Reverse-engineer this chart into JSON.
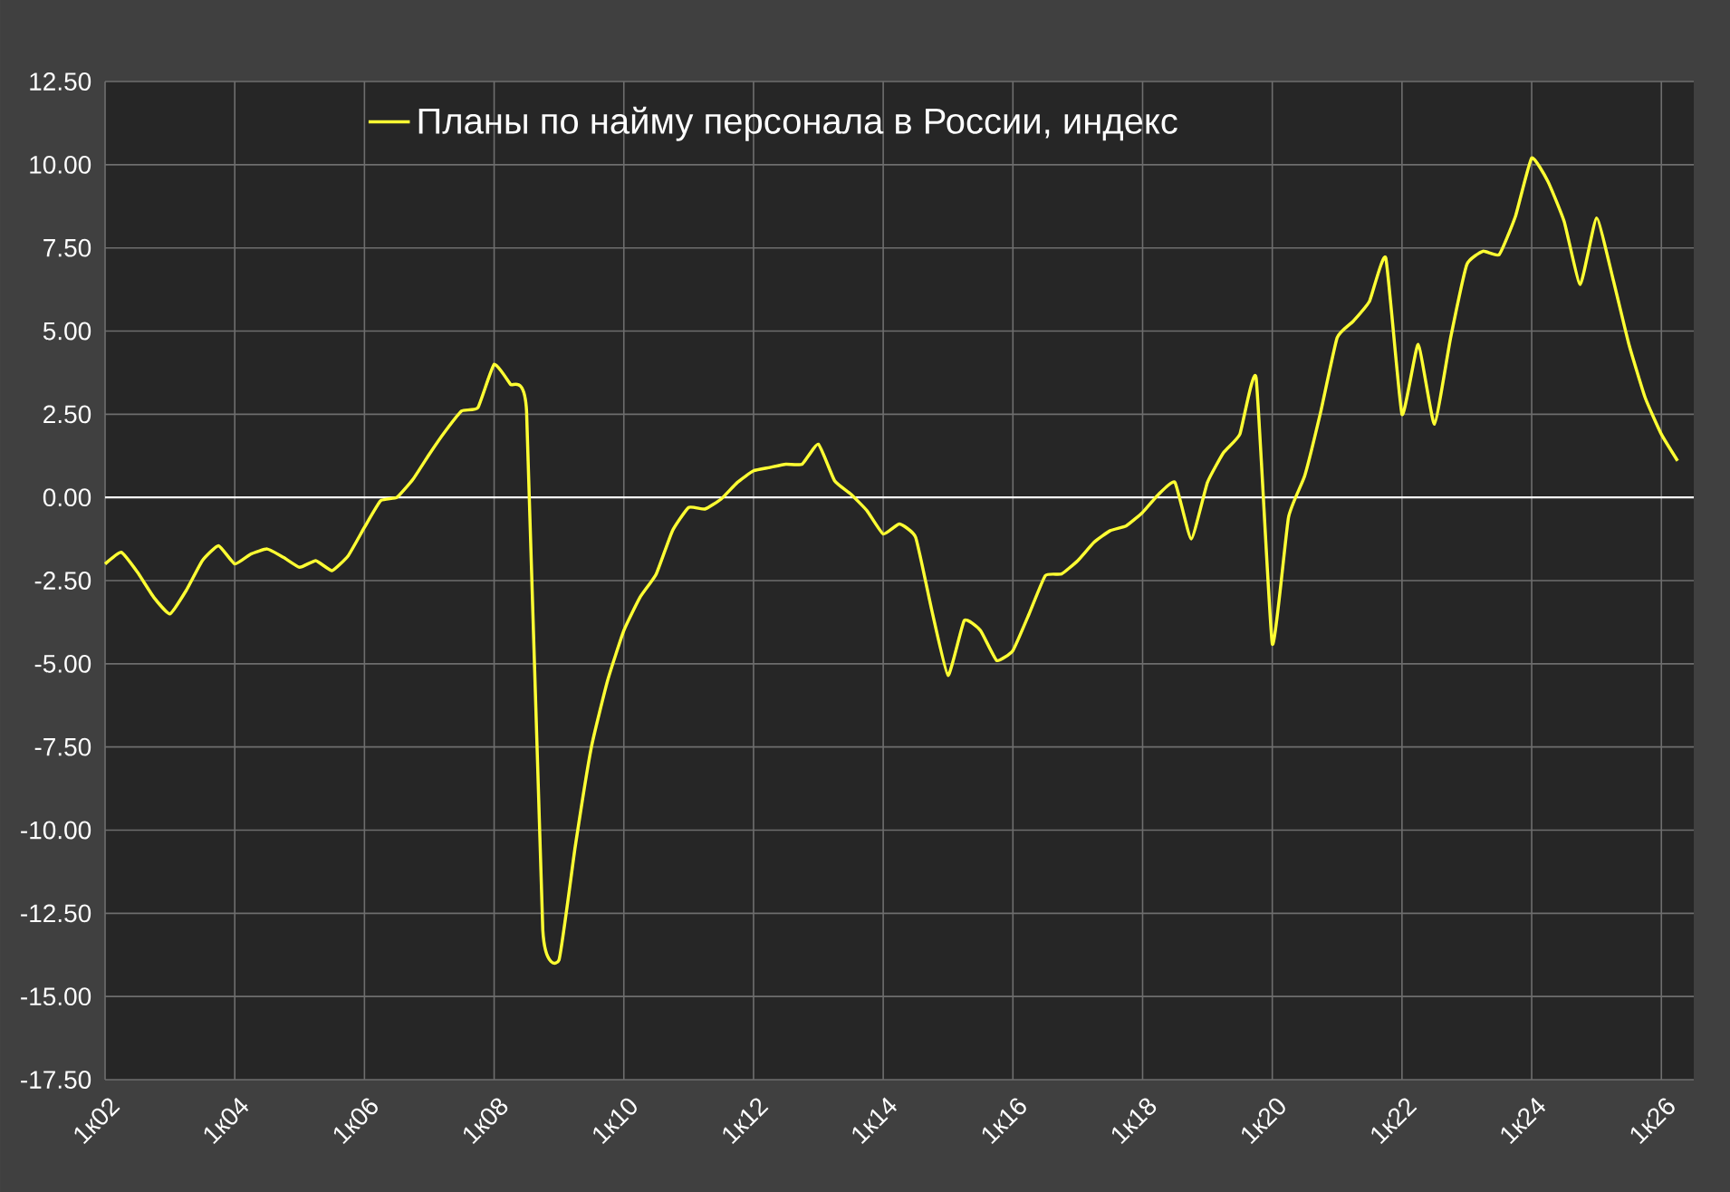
{
  "chart_data": {
    "type": "line",
    "categories": [
      "1к02",
      null,
      null,
      null,
      null,
      null,
      null,
      null,
      "1к04",
      null,
      null,
      null,
      null,
      null,
      null,
      null,
      "1к06",
      null,
      null,
      null,
      null,
      null,
      null,
      null,
      "1к08",
      null,
      null,
      null,
      null,
      null,
      null,
      null,
      "1к10",
      null,
      null,
      null,
      null,
      null,
      null,
      null,
      "1к12",
      null,
      null,
      null,
      null,
      null,
      null,
      null,
      "1к14",
      null,
      null,
      null,
      null,
      null,
      null,
      null,
      "1к16",
      null,
      null,
      null,
      null,
      null,
      null,
      null,
      "1к18",
      null,
      null,
      null,
      null,
      null,
      null,
      null,
      "1к20",
      null,
      null,
      null,
      null,
      null,
      null,
      null,
      "1к22",
      null,
      null,
      null,
      null,
      null,
      null,
      null,
      "1к24",
      null,
      null,
      null,
      null,
      null,
      null,
      null,
      "1к26",
      null
    ],
    "series": [
      {
        "name": "Планы по найму персонала в России, индекс",
        "color": "#ffff33",
        "values": [
          -2.0,
          -1.65,
          -2.25,
          -3.0,
          -3.5,
          -2.8,
          -1.9,
          -1.45,
          -2.0,
          -1.7,
          -1.55,
          -1.8,
          -2.1,
          -1.9,
          -2.2,
          -1.75,
          -0.9,
          -0.1,
          0.0,
          0.55,
          1.3,
          2.0,
          2.6,
          2.7,
          4.0,
          3.4,
          2.6,
          -13.0,
          -13.9,
          -10.5,
          -7.5,
          -5.5,
          -4.0,
          -3.0,
          -2.3,
          -1.0,
          -0.3,
          -0.35,
          -0.05,
          0.45,
          0.8,
          0.9,
          1.0,
          1.0,
          1.6,
          0.5,
          0.1,
          -0.4,
          -1.1,
          -0.8,
          -1.2,
          -3.4,
          -5.35,
          -3.7,
          -4.0,
          -4.9,
          -4.6,
          -3.5,
          -2.35,
          -2.3,
          -1.9,
          -1.35,
          -1.0,
          -0.85,
          -0.45,
          0.1,
          0.45,
          -1.25,
          0.45,
          1.35,
          1.9,
          3.6,
          -4.4,
          -0.6,
          0.65,
          2.6,
          4.8,
          5.3,
          5.9,
          7.2,
          2.5,
          4.6,
          2.2,
          4.8,
          7.0,
          7.4,
          7.3,
          8.45,
          10.2,
          9.5,
          8.3,
          6.4,
          8.4,
          6.6,
          4.6,
          3.0,
          1.9,
          1.1
        ]
      }
    ],
    "ylim": [
      -17.5,
      12.5
    ],
    "yticks": [
      {
        "value": -17.5,
        "label": "-17.50"
      },
      {
        "value": -15,
        "label": "-15.00"
      },
      {
        "value": -12.5,
        "label": "-12.50"
      },
      {
        "value": -10,
        "label": "-10.00"
      },
      {
        "value": -7.5,
        "label": "-7.50"
      },
      {
        "value": -5,
        "label": "-5.00"
      },
      {
        "value": -2.5,
        "label": "-2.50"
      },
      {
        "value": 0,
        "label": "0.00"
      },
      {
        "value": 2.5,
        "label": "2.50"
      },
      {
        "value": 5,
        "label": "5.00"
      },
      {
        "value": 7.5,
        "label": "7.50"
      },
      {
        "value": 10,
        "label": "10.00"
      },
      {
        "value": 12.5,
        "label": "12.50"
      }
    ],
    "grid": true,
    "legend": "top left",
    "marker": "none",
    "line_style": "solid"
  }
}
